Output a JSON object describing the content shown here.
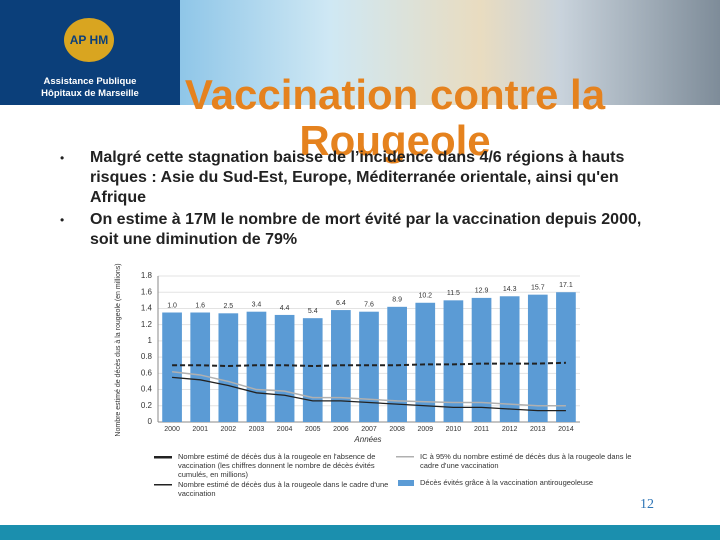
{
  "header": {
    "logo_mark": "AP HM",
    "logo_text": "Assistance Publique Hôpitaux de Marseille"
  },
  "title": "Vaccination contre la Rougeole",
  "bullets": [
    "Malgré cette stagnation baisse de l’incidence dans 4/6 régions à hauts risques : Asie du Sud-Est, Europe, Méditerranée orientale, ainsi qu'en Afrique",
    "On estime à 17M le nombre de mort évité par la vaccination depuis 2000, soit une diminution de 79%"
  ],
  "chart": {
    "type": "bar",
    "y_label": "Nombre estimé de décès dus à la rougeole (en millions)",
    "x_label": "Années",
    "categories": [
      "2000",
      "2001",
      "2002",
      "2003",
      "2004",
      "2005",
      "2006",
      "2007",
      "2008",
      "2009",
      "2010",
      "2011",
      "2012",
      "2013",
      "2014"
    ],
    "ylim": [
      0,
      1.8
    ],
    "yticks": [
      0,
      0.2,
      0.4,
      0.6,
      0.8,
      1,
      1.2,
      1.4,
      1.6,
      1.8
    ],
    "bar_labels": [
      "1.0",
      "1.6",
      "2.5",
      "3.4",
      "4.4",
      "5.4",
      "6.4",
      "7.6",
      "8.9",
      "10.2",
      "11.5",
      "12.9",
      "14.3",
      "15.7",
      "17.1"
    ],
    "series": [
      {
        "name": "Nombre estimé de décès dus à la rougeole en l'absence de vaccination (les chiffres donnent le nombre de décès évités cumulés, en millions)",
        "color": "#222222",
        "style": "dashed",
        "values": [
          0.7,
          0.7,
          0.69,
          0.7,
          0.7,
          0.69,
          0.7,
          0.7,
          0.7,
          0.71,
          0.71,
          0.72,
          0.72,
          0.72,
          0.73
        ]
      },
      {
        "name": "IC à 95% du nombre estimé de décès dus à la rougeole dans le cadre d'une vaccination",
        "color": "#b0b0b0",
        "style": "band",
        "values": [
          0.62,
          0.58,
          0.5,
          0.4,
          0.38,
          0.3,
          0.3,
          0.28,
          0.26,
          0.25,
          0.24,
          0.24,
          0.22,
          0.2,
          0.2
        ]
      },
      {
        "name": "Nombre estimé de décès dus à la rougeole dans le cadre d'une vaccination",
        "color": "#222222",
        "style": "solid",
        "values": [
          0.55,
          0.52,
          0.45,
          0.36,
          0.33,
          0.26,
          0.26,
          0.24,
          0.22,
          0.2,
          0.18,
          0.18,
          0.16,
          0.14,
          0.14
        ]
      },
      {
        "name": "Décès évités grâce à la vaccination antirougeoleuse",
        "color": "#5b9bd5",
        "style": "bar",
        "values": [
          1.35,
          1.35,
          1.34,
          1.36,
          1.32,
          1.28,
          1.38,
          1.36,
          1.42,
          1.47,
          1.5,
          1.53,
          1.55,
          1.57,
          1.6
        ]
      }
    ]
  },
  "page_number": "12"
}
